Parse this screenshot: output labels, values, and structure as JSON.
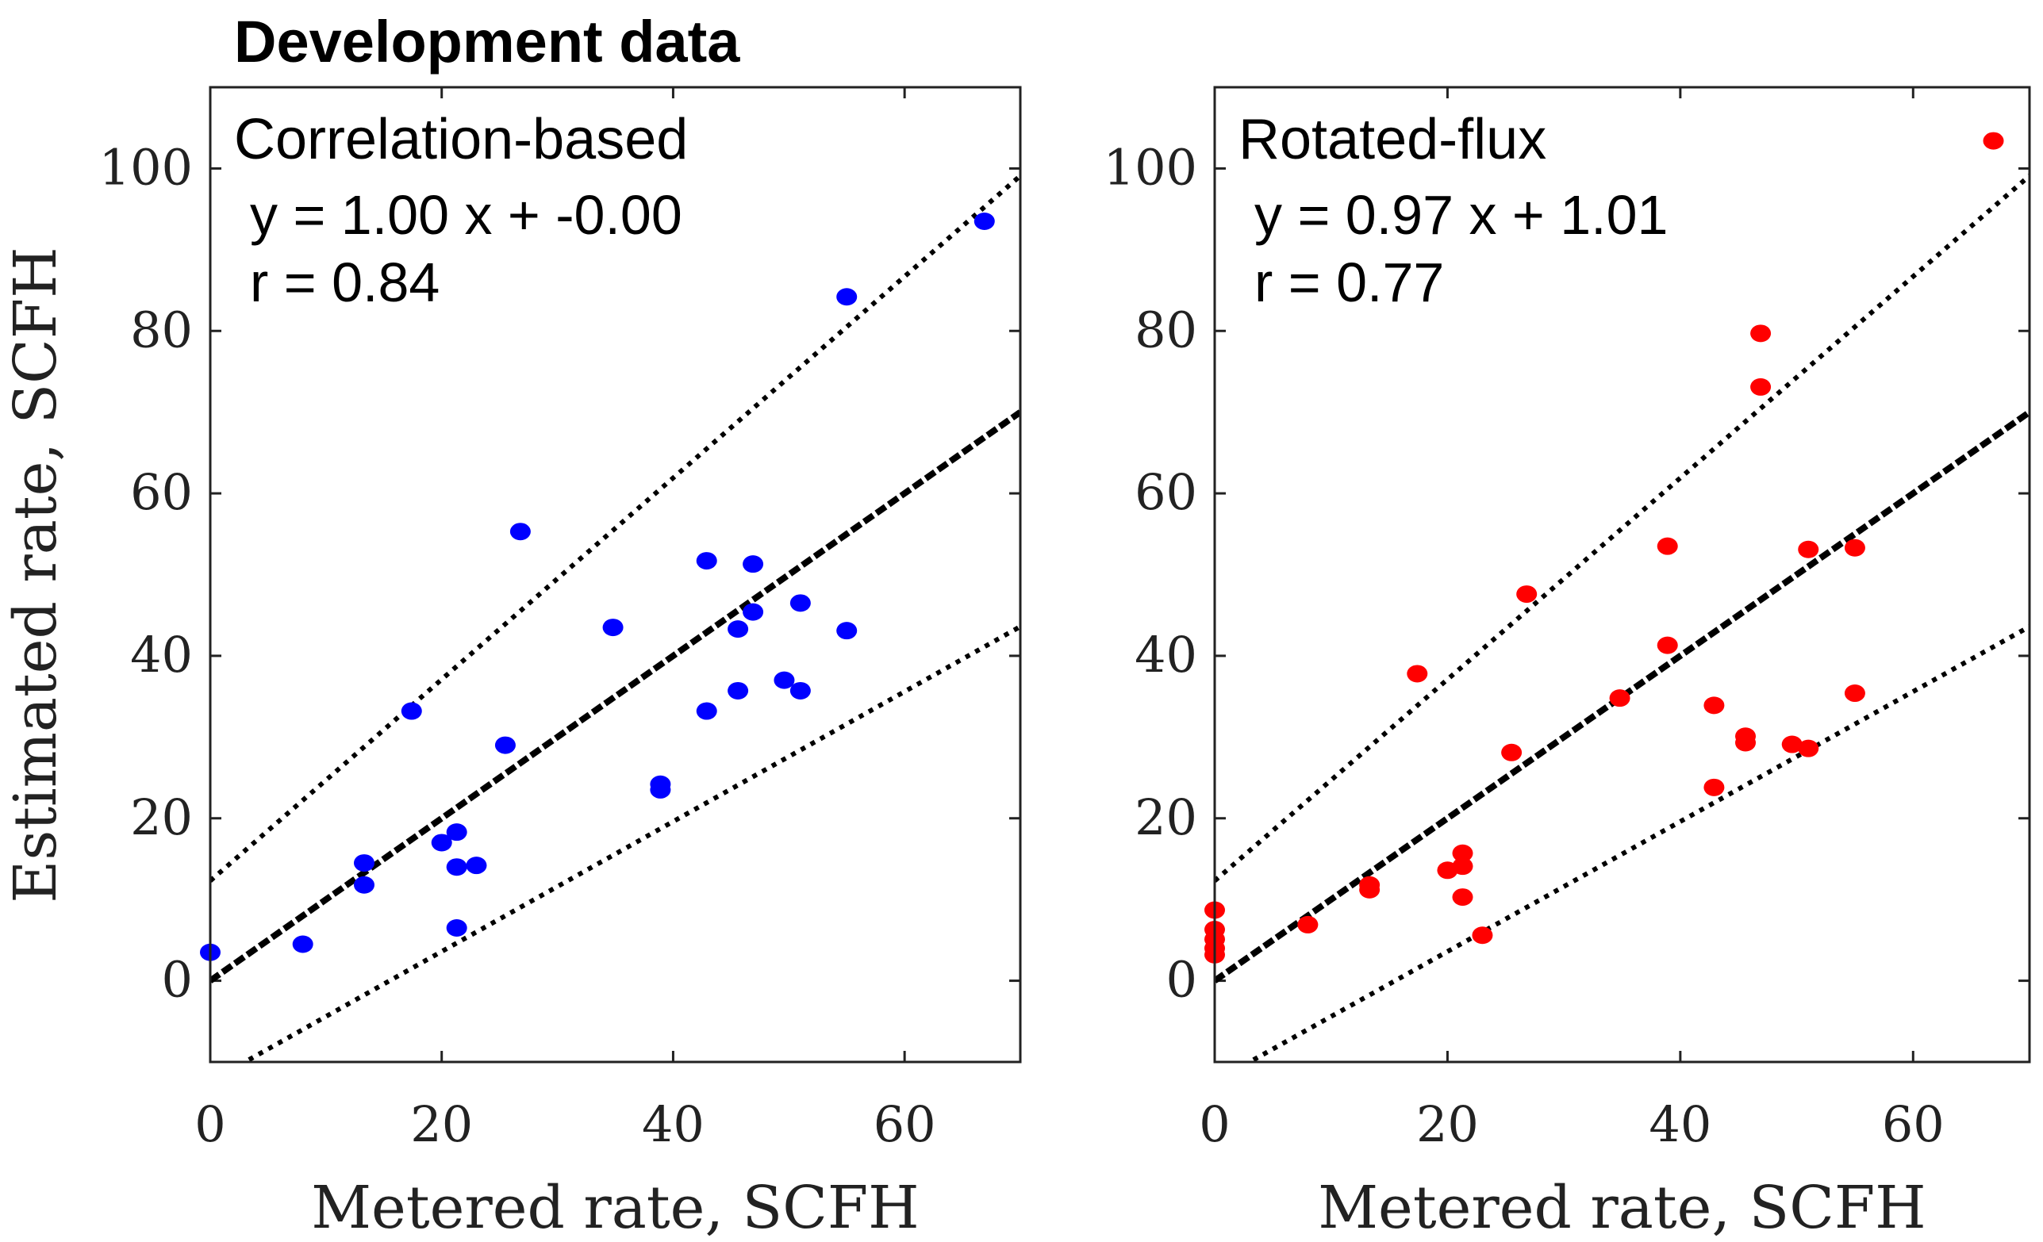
{
  "figure_title": "Development data",
  "chart_data": [
    {
      "type": "scatter",
      "title": "Correlation-based",
      "equation": "y = 1.00 x + -0.00",
      "r_text": "r = 0.84",
      "xlabel": "Metered rate, SCFH",
      "ylabel": "Estimated rate, SCFH",
      "xlim": [
        0,
        70
      ],
      "ylim": [
        -10,
        110
      ],
      "xticks": [
        0,
        20,
        40,
        60
      ],
      "yticks": [
        0,
        20,
        40,
        60,
        80,
        100
      ],
      "grid": false,
      "marker_color": "#0000ff",
      "lines": [
        {
          "name": "fit",
          "style": "dashed",
          "slope": 1.0,
          "intercept": 0.0
        },
        {
          "name": "upper-bound",
          "style": "dotted",
          "slope": 1.24,
          "intercept": 12.3
        },
        {
          "name": "lower-bound",
          "style": "dotted",
          "slope": 0.8,
          "intercept": -12.4
        }
      ],
      "points": [
        [
          0,
          3.5
        ],
        [
          8,
          4.5
        ],
        [
          13.3,
          14.5
        ],
        [
          13.3,
          11.8
        ],
        [
          17.4,
          33.2
        ],
        [
          20,
          17
        ],
        [
          21.3,
          18.3
        ],
        [
          21.3,
          14
        ],
        [
          23,
          14.2
        ],
        [
          21.3,
          6.5
        ],
        [
          25.5,
          29
        ],
        [
          26.8,
          55.3
        ],
        [
          34.8,
          43.5
        ],
        [
          38.9,
          24.2
        ],
        [
          38.9,
          23.5
        ],
        [
          42.9,
          51.7
        ],
        [
          42.9,
          33.2
        ],
        [
          45.6,
          43.3
        ],
        [
          45.6,
          35.7
        ],
        [
          46.9,
          51.3
        ],
        [
          46.9,
          45.4
        ],
        [
          49.6,
          37
        ],
        [
          51,
          46.5
        ],
        [
          51,
          35.7
        ],
        [
          55,
          84.2
        ],
        [
          55,
          43.1
        ],
        [
          66.9,
          93.5
        ]
      ]
    },
    {
      "type": "scatter",
      "title": "Rotated-flux",
      "equation": "y = 0.97 x + 1.01",
      "r_text": "r = 0.77",
      "xlabel": "Metered rate, SCFH",
      "ylabel": "",
      "xlim": [
        0,
        70
      ],
      "ylim": [
        -10,
        110
      ],
      "xticks": [
        0,
        20,
        40,
        60
      ],
      "yticks": [
        0,
        20,
        40,
        60,
        80,
        100
      ],
      "grid": false,
      "marker_color": "#ff0000",
      "lines": [
        {
          "name": "fit",
          "style": "dashed",
          "slope": 1.0,
          "intercept": 0.0
        },
        {
          "name": "upper-bound",
          "style": "dotted",
          "slope": 1.24,
          "intercept": 12.3
        },
        {
          "name": "lower-bound",
          "style": "dotted",
          "slope": 0.8,
          "intercept": -12.4
        }
      ],
      "points": [
        [
          0,
          8.7
        ],
        [
          0,
          6.3
        ],
        [
          0,
          5.1
        ],
        [
          0,
          4
        ],
        [
          0,
          3.2
        ],
        [
          8,
          6.9
        ],
        [
          13.3,
          11.2
        ],
        [
          13.3,
          11.8
        ],
        [
          17.4,
          37.8
        ],
        [
          20,
          13.6
        ],
        [
          21.3,
          15.7
        ],
        [
          21.3,
          14.1
        ],
        [
          21.3,
          10.3
        ],
        [
          23,
          5.6
        ],
        [
          25.5,
          28.1
        ],
        [
          26.8,
          47.6
        ],
        [
          34.8,
          34.8
        ],
        [
          38.9,
          53.5
        ],
        [
          38.9,
          41.3
        ],
        [
          42.9,
          33.9
        ],
        [
          42.9,
          23.8
        ],
        [
          45.6,
          30.1
        ],
        [
          45.6,
          29.3
        ],
        [
          46.9,
          79.7
        ],
        [
          46.9,
          73.1
        ],
        [
          49.6,
          29.1
        ],
        [
          51,
          53.1
        ],
        [
          51,
          28.6
        ],
        [
          55,
          53.3
        ],
        [
          55,
          35.4
        ],
        [
          66.9,
          103.4
        ]
      ]
    }
  ]
}
